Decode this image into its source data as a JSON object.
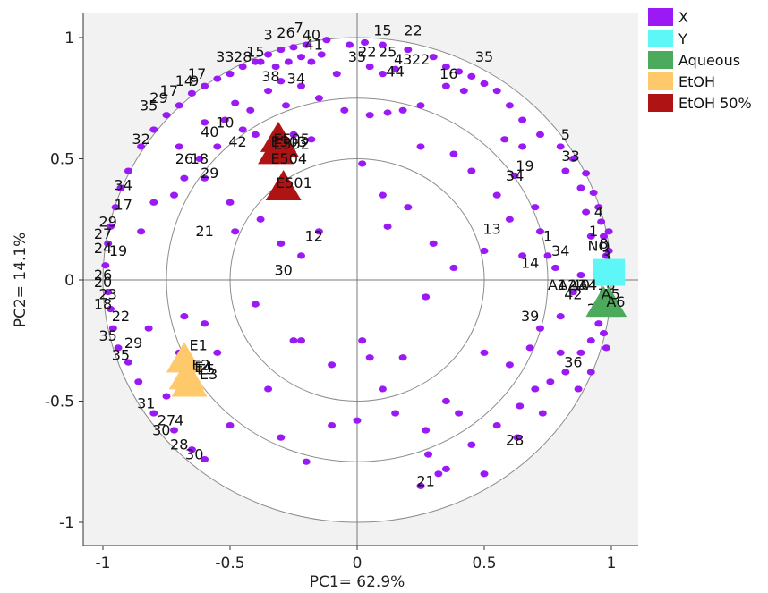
{
  "chart_data": {
    "type": "scatter",
    "xlabel": "PC1= 62.9%",
    "ylabel": "PC2= 14.1%",
    "xlim": [
      -1.1,
      1.1
    ],
    "ylim": [
      -1.1,
      1.1
    ],
    "xticks": [
      -1,
      -0.5,
      0,
      0.5,
      1
    ],
    "xtick_labels": [
      "-1",
      "-0.5",
      "0",
      "0.5",
      "1"
    ],
    "yticks": [
      1,
      0.5,
      0,
      -0.5,
      -1
    ],
    "ytick_labels": [
      "1",
      "0.5",
      "0",
      "-0.5",
      "-1"
    ],
    "circles": [
      1,
      0.75,
      0.5
    ],
    "legend_position": "top-right",
    "legend": [
      {
        "name": "X",
        "color": "#9b19f5"
      },
      {
        "name": "Y",
        "color": "#5ef7f7"
      },
      {
        "name": "Aqueous",
        "color": "#4caa5c"
      },
      {
        "name": "EtOH",
        "color": "#fec96a"
      },
      {
        "name": "EtOH 50%",
        "color": "#b01313"
      }
    ],
    "x_points": [
      [
        -0.03,
        0.97
      ],
      [
        0.03,
        0.98
      ],
      [
        0.1,
        0.97
      ],
      [
        0.2,
        0.95
      ],
      [
        0.3,
        0.92
      ],
      [
        0.35,
        0.88
      ],
      [
        0.4,
        0.86
      ],
      [
        0.45,
        0.84
      ],
      [
        0.5,
        0.81
      ],
      [
        -0.12,
        0.99
      ],
      [
        -0.2,
        0.97
      ],
      [
        -0.25,
        0.96
      ],
      [
        -0.3,
        0.95
      ],
      [
        -0.35,
        0.93
      ],
      [
        -0.4,
        0.9
      ],
      [
        -0.45,
        0.88
      ],
      [
        -0.5,
        0.85
      ],
      [
        -0.55,
        0.83
      ],
      [
        -0.6,
        0.8
      ],
      [
        -0.65,
        0.77
      ],
      [
        -0.7,
        0.72
      ],
      [
        -0.75,
        0.68
      ],
      [
        -0.8,
        0.62
      ],
      [
        -0.85,
        0.55
      ],
      [
        -0.9,
        0.45
      ],
      [
        -0.93,
        0.38
      ],
      [
        -0.95,
        0.3
      ],
      [
        -0.97,
        0.22
      ],
      [
        -0.98,
        0.15
      ],
      [
        -0.99,
        0.06
      ],
      [
        -0.98,
        -0.05
      ],
      [
        -0.97,
        -0.12
      ],
      [
        -0.96,
        -0.2
      ],
      [
        -0.94,
        -0.28
      ],
      [
        -0.9,
        -0.34
      ],
      [
        -0.86,
        -0.42
      ],
      [
        -0.8,
        -0.55
      ],
      [
        -0.72,
        -0.62
      ],
      [
        -0.65,
        -0.7
      ],
      [
        -0.6,
        -0.74
      ],
      [
        0.55,
        0.78
      ],
      [
        0.6,
        0.72
      ],
      [
        0.65,
        0.66
      ],
      [
        0.72,
        0.6
      ],
      [
        0.8,
        0.55
      ],
      [
        0.85,
        0.5
      ],
      [
        0.9,
        0.44
      ],
      [
        0.93,
        0.36
      ],
      [
        0.95,
        0.3
      ],
      [
        0.96,
        0.24
      ],
      [
        0.97,
        0.18
      ],
      [
        0.98,
        0.1
      ],
      [
        0.98,
        0.02
      ],
      [
        0.97,
        -0.05
      ],
      [
        0.96,
        -0.12
      ],
      [
        0.95,
        -0.18
      ],
      [
        0.92,
        -0.25
      ],
      [
        0.88,
        -0.3
      ],
      [
        0.82,
        -0.38
      ],
      [
        0.76,
        -0.42
      ],
      [
        0.7,
        -0.45
      ],
      [
        0.64,
        -0.52
      ],
      [
        0.55,
        -0.6
      ],
      [
        0.45,
        -0.68
      ],
      [
        0.35,
        -0.78
      ],
      [
        0.25,
        -0.85
      ],
      [
        -0.35,
        0.78
      ],
      [
        -0.3,
        0.82
      ],
      [
        -0.22,
        0.8
      ],
      [
        -0.15,
        0.75
      ],
      [
        -0.05,
        0.7
      ],
      [
        0.05,
        0.68
      ],
      [
        0.12,
        0.69
      ],
      [
        0.18,
        0.7
      ],
      [
        0.25,
        0.72
      ],
      [
        -0.45,
        0.62
      ],
      [
        -0.55,
        0.55
      ],
      [
        -0.62,
        0.5
      ],
      [
        -0.68,
        0.42
      ],
      [
        -0.72,
        0.35
      ],
      [
        -0.6,
        0.42
      ],
      [
        -0.5,
        0.32
      ],
      [
        -0.48,
        0.2
      ],
      [
        -0.38,
        0.25
      ],
      [
        -0.3,
        0.15
      ],
      [
        -0.22,
        0.1
      ],
      [
        -0.15,
        0.2
      ],
      [
        0.02,
        0.48
      ],
      [
        0.1,
        0.35
      ],
      [
        0.12,
        0.22
      ],
      [
        0.2,
        0.3
      ],
      [
        0.3,
        0.15
      ],
      [
        0.45,
        0.45
      ],
      [
        0.55,
        0.35
      ],
      [
        0.6,
        0.25
      ],
      [
        0.65,
        0.1
      ],
      [
        0.75,
        0.1
      ],
      [
        0.78,
        0.05
      ],
      [
        0.85,
        -0.05
      ],
      [
        0.8,
        -0.15
      ],
      [
        0.72,
        -0.2
      ],
      [
        0.68,
        -0.28
      ],
      [
        0.6,
        -0.35
      ],
      [
        0.5,
        -0.3
      ],
      [
        0.4,
        -0.55
      ],
      [
        0.35,
        -0.5
      ],
      [
        0.27,
        -0.62
      ],
      [
        0.15,
        -0.55
      ],
      [
        0.1,
        -0.45
      ],
      [
        0.02,
        -0.25
      ],
      [
        -0.22,
        -0.25
      ],
      [
        -0.25,
        -0.25
      ],
      [
        -0.35,
        -0.45
      ],
      [
        -0.6,
        -0.18
      ],
      [
        -0.68,
        -0.15
      ],
      [
        -0.7,
        -0.3
      ],
      [
        -0.5,
        -0.6
      ],
      [
        -0.3,
        -0.65
      ],
      [
        -0.2,
        -0.75
      ],
      [
        0.0,
        -0.58
      ],
      [
        -0.1,
        -0.6
      ],
      [
        0.28,
        -0.72
      ],
      [
        0.32,
        -0.8
      ],
      [
        0.5,
        -0.8
      ],
      [
        0.63,
        -0.65
      ],
      [
        0.73,
        -0.55
      ],
      [
        0.87,
        -0.45
      ],
      [
        0.8,
        -0.3
      ],
      [
        0.92,
        -0.38
      ],
      [
        0.97,
        -0.22
      ],
      [
        0.99,
        0.12
      ],
      [
        0.99,
        0.2
      ],
      [
        0.98,
        -0.28
      ],
      [
        -0.38,
        0.9
      ],
      [
        -0.32,
        0.88
      ],
      [
        -0.27,
        0.9
      ],
      [
        -0.22,
        0.92
      ],
      [
        -0.18,
        0.9
      ],
      [
        -0.14,
        0.93
      ],
      [
        0.05,
        0.88
      ],
      [
        0.1,
        0.85
      ],
      [
        0.15,
        0.87
      ],
      [
        -0.42,
        0.7
      ],
      [
        -0.52,
        0.66
      ],
      [
        -0.28,
        0.72
      ],
      [
        -0.08,
        0.85
      ],
      [
        0.35,
        0.8
      ],
      [
        0.42,
        0.78
      ],
      [
        0.58,
        0.58
      ],
      [
        0.65,
        0.55
      ],
      [
        0.82,
        0.45
      ],
      [
        0.88,
        0.38
      ],
      [
        0.9,
        0.28
      ],
      [
        0.92,
        0.18
      ],
      [
        0.7,
        0.3
      ],
      [
        0.5,
        0.12
      ],
      [
        0.38,
        0.05
      ],
      [
        0.27,
        -0.07
      ],
      [
        0.18,
        -0.32
      ],
      [
        0.05,
        -0.32
      ],
      [
        -0.1,
        -0.35
      ],
      [
        -0.4,
        -0.1
      ],
      [
        -0.55,
        -0.3
      ],
      [
        -0.75,
        -0.48
      ],
      [
        -0.82,
        -0.2
      ],
      [
        -0.85,
        0.2
      ],
      [
        -0.8,
        0.32
      ],
      [
        -0.7,
        0.55
      ],
      [
        -0.6,
        0.65
      ],
      [
        -0.48,
        0.73
      ],
      [
        -0.4,
        0.6
      ],
      [
        -0.25,
        0.6
      ],
      [
        -0.18,
        0.58
      ],
      [
        0.25,
        0.55
      ],
      [
        0.38,
        0.52
      ],
      [
        0.62,
        0.43
      ],
      [
        0.72,
        0.2
      ],
      [
        0.88,
        0.02
      ]
    ],
    "x_labels": [
      {
        "t": "15",
        "x": 0.1,
        "y": 1.01
      },
      {
        "t": "22",
        "x": 0.22,
        "y": 1.01
      },
      {
        "t": "35",
        "x": 0.5,
        "y": 0.9
      },
      {
        "t": "3",
        "x": -0.35,
        "y": 0.99
      },
      {
        "t": "26",
        "x": -0.28,
        "y": 1.0
      },
      {
        "t": "7",
        "x": -0.23,
        "y": 1.02
      },
      {
        "t": "40",
        "x": -0.18,
        "y": 0.99
      },
      {
        "t": "41",
        "x": -0.17,
        "y": 0.95
      },
      {
        "t": "33",
        "x": -0.52,
        "y": 0.9
      },
      {
        "t": "28",
        "x": -0.45,
        "y": 0.9
      },
      {
        "t": "15",
        "x": -0.4,
        "y": 0.92
      },
      {
        "t": "35",
        "x": 0.0,
        "y": 0.9
      },
      {
        "t": "22",
        "x": 0.04,
        "y": 0.92
      },
      {
        "t": "25",
        "x": 0.12,
        "y": 0.92
      },
      {
        "t": "43",
        "x": 0.18,
        "y": 0.89
      },
      {
        "t": "22",
        "x": 0.25,
        "y": 0.89
      },
      {
        "t": "44",
        "x": 0.15,
        "y": 0.84
      },
      {
        "t": "16",
        "x": 0.36,
        "y": 0.83
      },
      {
        "t": "38",
        "x": -0.34,
        "y": 0.82
      },
      {
        "t": "34",
        "x": -0.24,
        "y": 0.81
      },
      {
        "t": "17",
        "x": -0.63,
        "y": 0.83
      },
      {
        "t": "14",
        "x": -0.68,
        "y": 0.8
      },
      {
        "t": "9",
        "x": -0.64,
        "y": 0.8
      },
      {
        "t": "17",
        "x": -0.74,
        "y": 0.76
      },
      {
        "t": "29",
        "x": -0.78,
        "y": 0.73
      },
      {
        "t": "35",
        "x": -0.82,
        "y": 0.7
      },
      {
        "t": "10",
        "x": -0.52,
        "y": 0.63
      },
      {
        "t": "40",
        "x": -0.58,
        "y": 0.59
      },
      {
        "t": "42",
        "x": -0.47,
        "y": 0.55
      },
      {
        "t": "32",
        "x": -0.85,
        "y": 0.56
      },
      {
        "t": "26",
        "x": -0.68,
        "y": 0.48
      },
      {
        "t": "18",
        "x": -0.62,
        "y": 0.48
      },
      {
        "t": "29",
        "x": -0.58,
        "y": 0.42
      },
      {
        "t": "34",
        "x": -0.92,
        "y": 0.37
      },
      {
        "t": "17",
        "x": -0.92,
        "y": 0.29
      },
      {
        "t": "29",
        "x": -0.98,
        "y": 0.22
      },
      {
        "t": "27",
        "x": -1.0,
        "y": 0.17
      },
      {
        "t": "24",
        "x": -1.0,
        "y": 0.11
      },
      {
        "t": "19",
        "x": -0.94,
        "y": 0.1
      },
      {
        "t": "26",
        "x": -1.0,
        "y": 0.0
      },
      {
        "t": "20",
        "x": -1.0,
        "y": -0.03
      },
      {
        "t": "23",
        "x": -0.98,
        "y": -0.08
      },
      {
        "t": "18",
        "x": -1.0,
        "y": -0.12
      },
      {
        "t": "22",
        "x": -0.93,
        "y": -0.17
      },
      {
        "t": "35",
        "x": -0.98,
        "y": -0.25
      },
      {
        "t": "29",
        "x": -0.88,
        "y": -0.28
      },
      {
        "t": "35",
        "x": -0.93,
        "y": -0.33
      },
      {
        "t": "21",
        "x": -0.6,
        "y": 0.18
      },
      {
        "t": "12",
        "x": -0.17,
        "y": 0.16
      },
      {
        "t": "30",
        "x": -0.29,
        "y": 0.02
      },
      {
        "t": "31",
        "x": -0.83,
        "y": -0.53
      },
      {
        "t": "27",
        "x": -0.75,
        "y": -0.6
      },
      {
        "t": "4",
        "x": -0.7,
        "y": -0.6
      },
      {
        "t": "30",
        "x": -0.77,
        "y": -0.64
      },
      {
        "t": "28",
        "x": -0.7,
        "y": -0.7
      },
      {
        "t": "30",
        "x": -0.64,
        "y": -0.74
      },
      {
        "t": "21",
        "x": 0.27,
        "y": -0.85
      },
      {
        "t": "28",
        "x": 0.62,
        "y": -0.68
      },
      {
        "t": "36",
        "x": 0.85,
        "y": -0.36
      },
      {
        "t": "39",
        "x": 0.68,
        "y": -0.17
      },
      {
        "t": "14",
        "x": 0.68,
        "y": 0.05
      },
      {
        "t": "34",
        "x": 0.8,
        "y": 0.1
      },
      {
        "t": "1",
        "x": 0.75,
        "y": 0.16
      },
      {
        "t": "13",
        "x": 0.53,
        "y": 0.19
      },
      {
        "t": "34",
        "x": 0.62,
        "y": 0.41
      },
      {
        "t": "19",
        "x": 0.66,
        "y": 0.45
      },
      {
        "t": "5",
        "x": 0.82,
        "y": 0.58
      },
      {
        "t": "33",
        "x": 0.84,
        "y": 0.49
      },
      {
        "t": "4",
        "x": 0.95,
        "y": 0.26
      },
      {
        "t": "1",
        "x": 0.93,
        "y": 0.18
      },
      {
        "t": "8",
        "x": 0.97,
        "y": 0.13
      },
      {
        "t": "NO",
        "x": 0.95,
        "y": 0.12
      },
      {
        "t": "3",
        "x": 0.98,
        "y": 0.08
      },
      {
        "t": "14",
        "x": 0.96,
        "y": 0.04
      },
      {
        "t": "18",
        "x": 0.98,
        "y": -0.04
      },
      {
        "t": "42",
        "x": 0.85,
        "y": -0.08
      },
      {
        "t": "40",
        "x": 0.88,
        "y": -0.04
      },
      {
        "t": "26",
        "x": 0.94,
        "y": -0.14
      }
    ],
    "y_points": [
      [
        0.99,
        0.02
      ]
    ],
    "aqueous_points": [
      [
        0.97,
        -0.1
      ],
      [
        0.99,
        -0.1
      ]
    ],
    "aqueous_labels": [
      {
        "t": "A1",
        "x": 0.75,
        "y": -0.04
      },
      {
        "t": "A2",
        "x": 0.79,
        "y": -0.04
      },
      {
        "t": "A3",
        "x": 0.83,
        "y": -0.04
      },
      {
        "t": "A4",
        "x": 0.87,
        "y": -0.04
      },
      {
        "t": "A5",
        "x": 0.96,
        "y": -0.08
      },
      {
        "t": "A6",
        "x": 0.98,
        "y": -0.11
      }
    ],
    "etoh_points": [
      [
        -0.68,
        -0.33
      ],
      [
        -0.67,
        -0.4
      ],
      [
        -0.66,
        -0.43
      ]
    ],
    "etoh_labels": [
      {
        "t": "E1",
        "x": -0.66,
        "y": -0.29
      },
      {
        "t": "E2",
        "x": -0.65,
        "y": -0.37
      },
      {
        "t": "E4",
        "x": -0.64,
        "y": -0.38
      },
      {
        "t": "E5",
        "x": -0.63,
        "y": -0.39
      },
      {
        "t": "E3",
        "x": -0.62,
        "y": -0.41
      }
    ],
    "etoh50_points": [
      [
        -0.32,
        0.53
      ],
      [
        -0.31,
        0.58
      ],
      [
        -0.3,
        0.56
      ],
      [
        -0.29,
        0.38
      ]
    ],
    "etoh50_labels": [
      {
        "t": "E503",
        "x": -0.34,
        "y": 0.55
      },
      {
        "t": "E505",
        "x": -0.33,
        "y": 0.56
      },
      {
        "t": "E502",
        "x": -0.33,
        "y": 0.54
      },
      {
        "t": "E504",
        "x": -0.34,
        "y": 0.48
      },
      {
        "t": "E501",
        "x": -0.32,
        "y": 0.38
      }
    ]
  }
}
